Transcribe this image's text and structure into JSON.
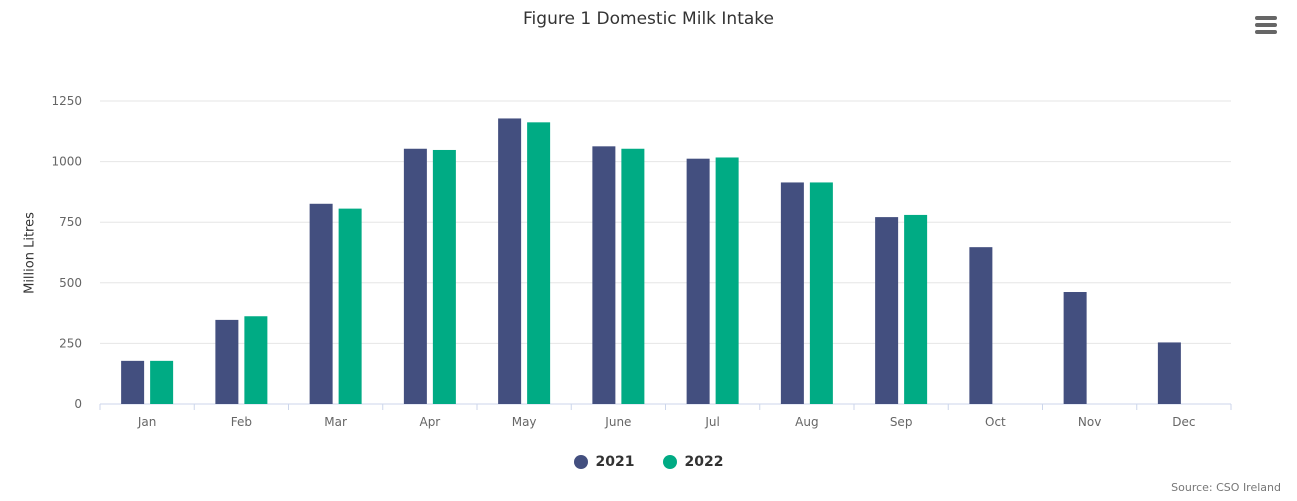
{
  "chart_data": {
    "type": "bar",
    "title": "Figure 1 Domestic Milk Intake",
    "ylabel": "Million Litres",
    "xlabel": "",
    "ylim": [
      0,
      1250
    ],
    "yticks": [
      0,
      250,
      500,
      750,
      1000,
      1250
    ],
    "grid": true,
    "legend_position": "bottom",
    "categories": [
      "Jan",
      "Feb",
      "Mar",
      "Apr",
      "May",
      "June",
      "Jul",
      "Aug",
      "Sep",
      "Oct",
      "Nov",
      "Dec"
    ],
    "series": [
      {
        "name": "2021",
        "color": "#434f7f",
        "values": [
          178,
          347,
          826,
          1053,
          1178,
          1063,
          1012,
          914,
          771,
          647,
          462,
          254
        ]
      },
      {
        "name": "2022",
        "color": "#00ab84",
        "values": [
          178,
          362,
          806,
          1048,
          1162,
          1053,
          1017,
          914,
          780,
          null,
          null,
          null
        ]
      }
    ],
    "source": "Source: CSO Ireland"
  },
  "icons": {
    "menu": "hamburger-menu-icon"
  }
}
